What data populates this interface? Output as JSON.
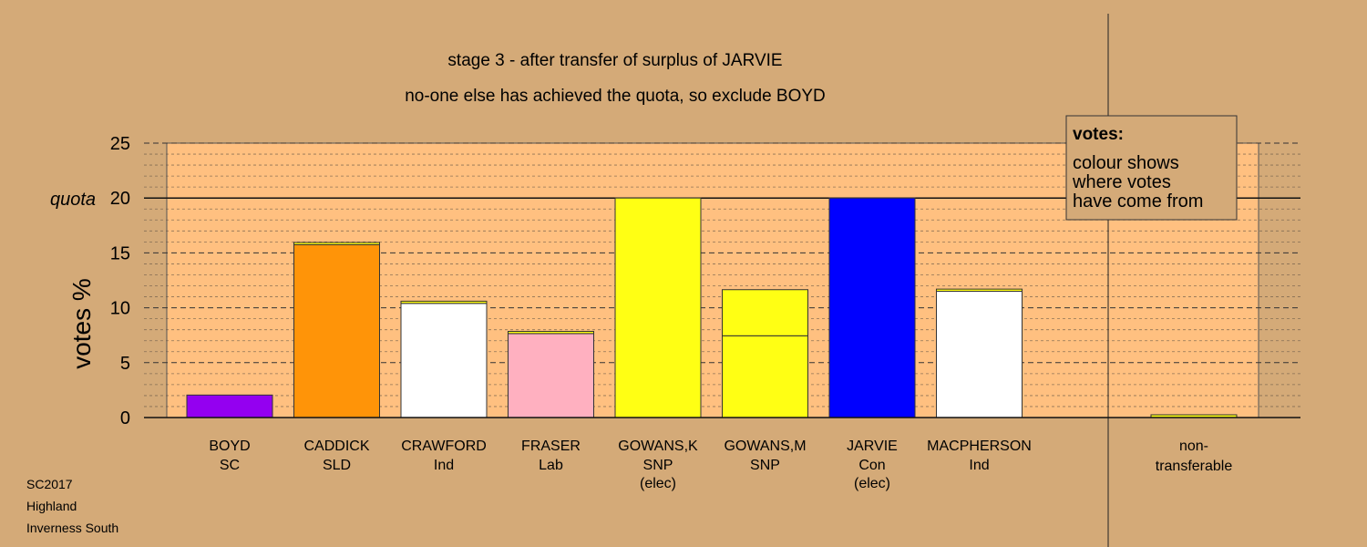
{
  "chart_data": {
    "type": "bar",
    "title": "stage 3 - after transfer of surplus of JARVIE",
    "subtitle": "no-one else has achieved the quota, so exclude BOYD",
    "ylabel": "votes %",
    "ylim": [
      0,
      25
    ],
    "yticks": [
      0,
      5,
      10,
      15,
      20,
      25
    ],
    "quota": 20,
    "quota_label": "quota",
    "grid": true,
    "legend": {
      "title": "votes:",
      "lines": [
        "colour shows",
        "where votes",
        "have come from"
      ],
      "placement": "top-right"
    },
    "categories": [
      {
        "name": "BOYD",
        "party": "SC",
        "note": "",
        "segments": [
          {
            "value": 2.05,
            "color": "#9400f0"
          }
        ]
      },
      {
        "name": "CADDICK",
        "party": "SLD",
        "note": "",
        "segments": [
          {
            "value": 15.75,
            "color": "#ff9408"
          },
          {
            "value": 0.2,
            "color": "#ffff14"
          }
        ]
      },
      {
        "name": "CRAWFORD",
        "party": "Ind",
        "note": "",
        "segments": [
          {
            "value": 10.4,
            "color": "#ffffff"
          },
          {
            "value": 0.2,
            "color": "#ffff14"
          }
        ]
      },
      {
        "name": "FRASER",
        "party": "Lab",
        "note": "",
        "segments": [
          {
            "value": 7.65,
            "color": "#ffb0c0"
          },
          {
            "value": 0.2,
            "color": "#ffff14"
          }
        ]
      },
      {
        "name": "GOWANS,K",
        "party": "SNP",
        "note": "(elec)",
        "segments": [
          {
            "value": 20.0,
            "color": "#ffff14"
          }
        ]
      },
      {
        "name": "GOWANS,M",
        "party": "SNP",
        "note": "",
        "segments": [
          {
            "value": 7.45,
            "color": "#ffff14"
          },
          {
            "value": 4.2,
            "color": "#ffff14"
          }
        ]
      },
      {
        "name": "JARVIE",
        "party": "Con",
        "note": "(elec)",
        "segments": [
          {
            "value": 20.0,
            "color": "#0000ff"
          }
        ]
      },
      {
        "name": "MACPHERSON",
        "party": "Ind",
        "note": "",
        "segments": [
          {
            "value": 11.5,
            "color": "#ffffff"
          },
          {
            "value": 0.2,
            "color": "#ffff14"
          }
        ]
      }
    ],
    "nontransferable": {
      "name": "non-",
      "name2": "transferable",
      "value": 0.25,
      "color": "#ffff14"
    }
  },
  "footer": [
    "SC2017",
    "Highland",
    "Inverness South"
  ],
  "colors": {
    "background": "#d4aa78",
    "plot_area": "#ffc080"
  }
}
